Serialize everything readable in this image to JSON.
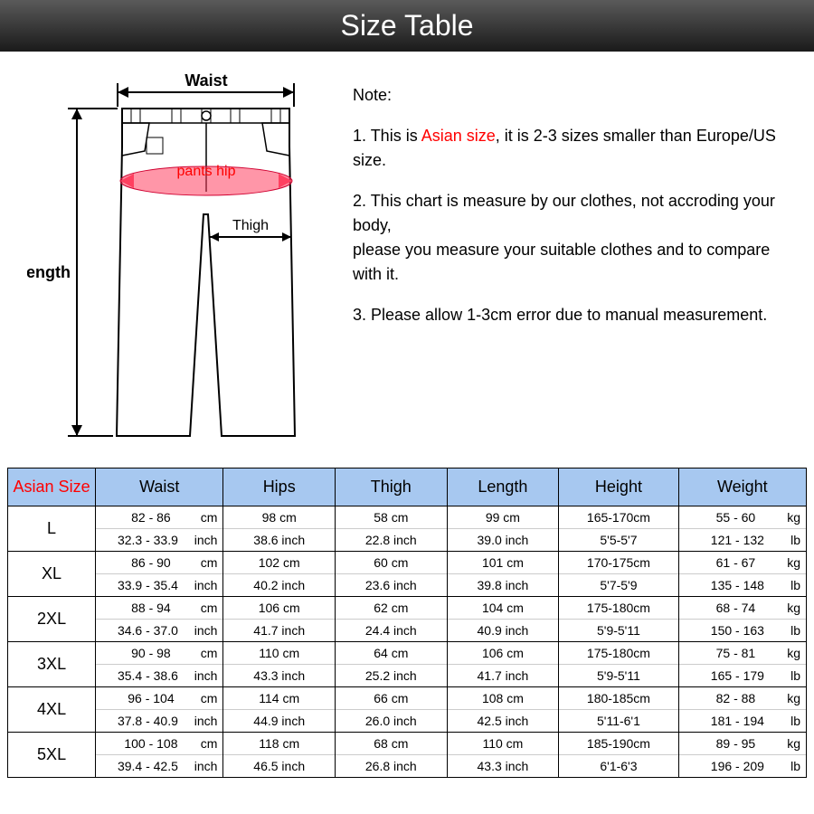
{
  "title": "Size Table",
  "diagram": {
    "waist_label": "Waist",
    "length_label": "Length",
    "pants_hip_label": "pants hip",
    "thigh_label": "Thigh",
    "hip_color": "#ff4060",
    "hip_text_color": "#ff0000",
    "stroke_color": "#000000",
    "arrow_color": "#000000"
  },
  "notes": {
    "heading": "Note:",
    "item1_prefix": "1. This is ",
    "item1_red": "Asian size",
    "item1_suffix": ", it is 2-3 sizes smaller than Europe/US size.",
    "item2": "2. This chart is measure by our clothes, not accroding your body,",
    "item2b": "please you measure your suitable clothes and to compare with it.",
    "item3": "3. Please allow 1-3cm error due to manual measurement."
  },
  "table": {
    "header_bg": "#a7c8f0",
    "asian_size_color": "#ff0000",
    "columns": [
      "Asian Size",
      "Waist",
      "Hips",
      "Thigh",
      "Length",
      "Height",
      "Weight"
    ],
    "col_widths_pct": [
      11,
      16,
      14,
      14,
      14,
      15,
      16
    ],
    "rows": [
      {
        "size": "L",
        "waist_cm": "82 - 86",
        "waist_in": "32.3 - 33.9",
        "hips_cm": "98",
        "hips_in": "38.6",
        "thigh_cm": "58",
        "thigh_in": "22.8",
        "length_cm": "99",
        "length_in": "39.0",
        "height_cm": "165-170cm",
        "height_ft": "5'5-5'7",
        "weight_kg": "55 - 60",
        "weight_lb": "121 - 132"
      },
      {
        "size": "XL",
        "waist_cm": "86 - 90",
        "waist_in": "33.9 - 35.4",
        "hips_cm": "102",
        "hips_in": "40.2",
        "thigh_cm": "60",
        "thigh_in": "23.6",
        "length_cm": "101",
        "length_in": "39.8",
        "height_cm": "170-175cm",
        "height_ft": "5'7-5'9",
        "weight_kg": "61 - 67",
        "weight_lb": "135 - 148"
      },
      {
        "size": "2XL",
        "waist_cm": "88 - 94",
        "waist_in": "34.6 - 37.0",
        "hips_cm": "106",
        "hips_in": "41.7",
        "thigh_cm": "62",
        "thigh_in": "24.4",
        "length_cm": "104",
        "length_in": "40.9",
        "height_cm": "175-180cm",
        "height_ft": "5'9-5'11",
        "weight_kg": "68 - 74",
        "weight_lb": "150 - 163"
      },
      {
        "size": "3XL",
        "waist_cm": "90 - 98",
        "waist_in": "35.4 - 38.6",
        "hips_cm": "110",
        "hips_in": "43.3",
        "thigh_cm": "64",
        "thigh_in": "25.2",
        "length_cm": "106",
        "length_in": "41.7",
        "height_cm": "175-180cm",
        "height_ft": "5'9-5'11",
        "weight_kg": "75 - 81",
        "weight_lb": "165 - 179"
      },
      {
        "size": "4XL",
        "waist_cm": "96 - 104",
        "waist_in": "37.8 - 40.9",
        "hips_cm": "114",
        "hips_in": "44.9",
        "thigh_cm": "66",
        "thigh_in": "26.0",
        "length_cm": "108",
        "length_in": "42.5",
        "height_cm": "180-185cm",
        "height_ft": "5'11-6'1",
        "weight_kg": "82 - 88",
        "weight_lb": "181 - 194"
      },
      {
        "size": "5XL",
        "waist_cm": "100 - 108",
        "waist_in": "39.4 - 42.5",
        "hips_cm": "118",
        "hips_in": "46.5",
        "thigh_cm": "68",
        "thigh_in": "26.8",
        "length_cm": "110",
        "length_in": "43.3",
        "height_cm": "185-190cm",
        "height_ft": "6'1-6'3",
        "weight_kg": "89 - 95",
        "weight_lb": "196 - 209"
      }
    ]
  }
}
